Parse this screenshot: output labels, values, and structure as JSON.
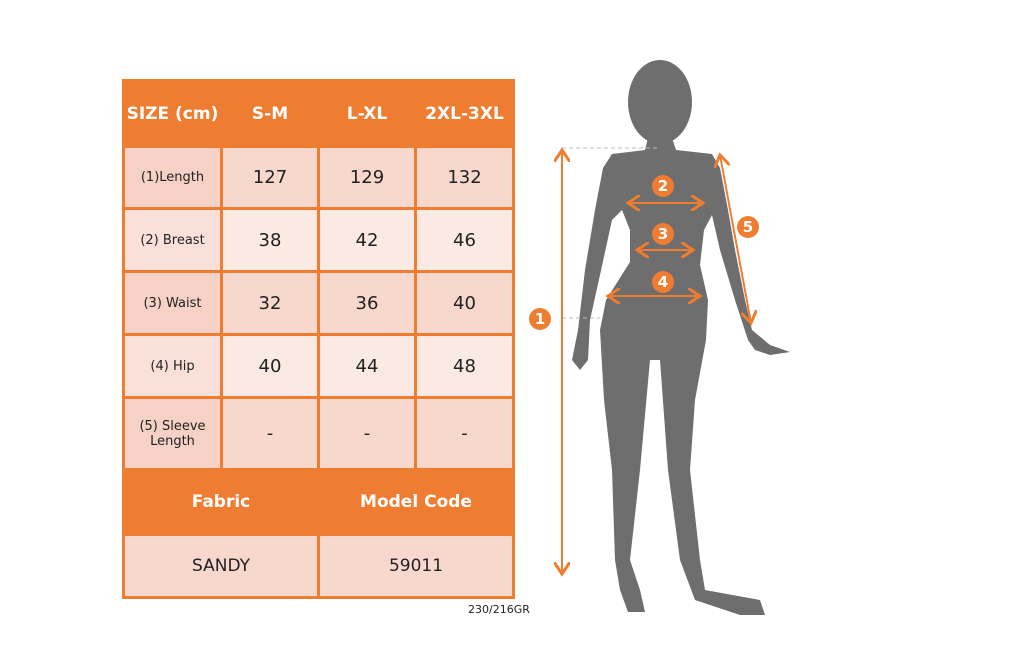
{
  "table": {
    "header": [
      "SIZE (cm)",
      "S-M",
      "L-XL",
      "2XL-3XL"
    ],
    "rows": [
      {
        "label": "(1)Length",
        "values": [
          "127",
          "129",
          "132"
        ]
      },
      {
        "label": "(2) Breast",
        "values": [
          "38",
          "42",
          "46"
        ]
      },
      {
        "label": "(3) Waist",
        "values": [
          "32",
          "36",
          "40"
        ]
      },
      {
        "label": "(4) Hip",
        "values": [
          "40",
          "44",
          "48"
        ]
      },
      {
        "label": "(5) Sleeve Length",
        "values": [
          "-",
          "-",
          "-"
        ]
      }
    ],
    "fabric_label": "Fabric",
    "model_code_label": "Model Code",
    "fabric": "SANDY",
    "model_code": "59011"
  },
  "weight": "230/216GR",
  "figure": {
    "markers": [
      "1",
      "2",
      "3",
      "4",
      "5"
    ],
    "accent": "#ee7d31",
    "silhouette": "#6e6e6e"
  }
}
